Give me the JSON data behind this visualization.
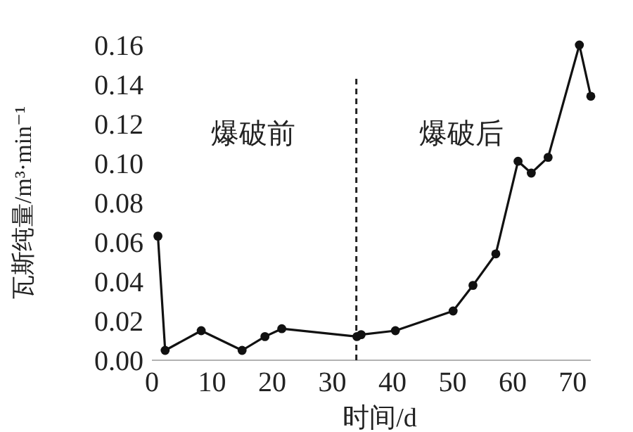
{
  "chart_data": {
    "type": "line",
    "xlabel": "时间/d",
    "ylabel": "瓦斯纯量/m³·min⁻¹",
    "x": [
      1,
      2.2,
      8.2,
      15,
      18.8,
      21.6,
      34.1,
      34.8,
      40.5,
      50.1,
      53.4,
      57.2,
      60.9,
      63.1,
      65.9,
      71.1,
      73
    ],
    "series": [
      {
        "color": "#111111",
        "values": [
          0.063,
          0.005,
          0.015,
          0.005,
          0.012,
          0.016,
          0.012,
          0.013,
          0.015,
          0.025,
          0.038,
          0.054,
          0.101,
          0.095,
          0.103,
          0.16,
          0.134
        ]
      }
    ],
    "xlim": [
      0,
      73
    ],
    "ylim": [
      0,
      0.16
    ],
    "xticks": [
      0,
      10,
      20,
      30,
      40,
      50,
      60,
      70
    ],
    "yticks": [
      {
        "value": 0,
        "label": "0.00"
      },
      {
        "value": 0.02,
        "label": "0.02"
      },
      {
        "value": 0.04,
        "label": "0.04"
      },
      {
        "value": 0.06,
        "label": "0.06"
      },
      {
        "value": 0.08,
        "label": "0.08"
      },
      {
        "value": 0.1,
        "label": "0.10"
      },
      {
        "value": 0.12,
        "label": "0.12"
      },
      {
        "value": 0.14,
        "label": "0.14"
      },
      {
        "value": 0.16,
        "label": "0.16"
      }
    ],
    "ref_lines": [
      {
        "axis": "x",
        "value": 34,
        "line_style": "dashed"
      }
    ],
    "annotations": [
      "爆破前",
      "爆破后"
    ],
    "marker": "circle",
    "line_style": "solid",
    "grid": false
  }
}
